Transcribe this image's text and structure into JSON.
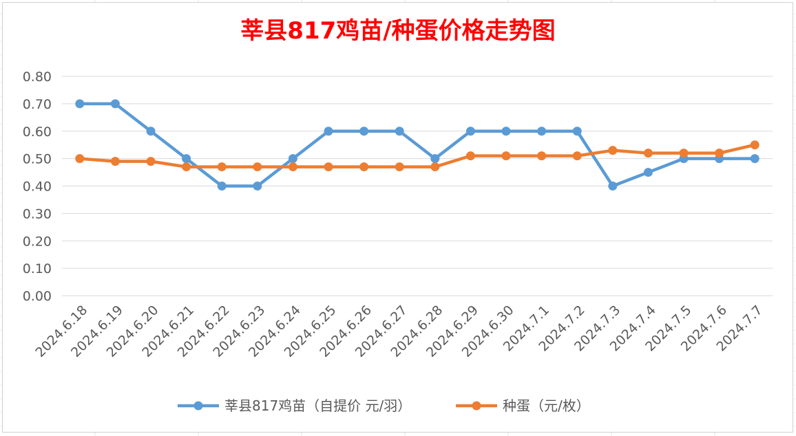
{
  "chart_data": {
    "type": "line",
    "title": "莘县817鸡苗/种蛋价格走势图",
    "xlabel": "",
    "ylabel": "",
    "ylim": [
      0,
      0.8
    ],
    "yticks": [
      "0.00",
      "0.10",
      "0.20",
      "0.30",
      "0.40",
      "0.50",
      "0.60",
      "0.70",
      "0.80"
    ],
    "grid": true,
    "legend": "bottom",
    "categories": [
      "2024.6.18",
      "2024.6.19",
      "2024.6.20",
      "2024.6.21",
      "2024.6.22",
      "2024.6.23",
      "2024.6.24",
      "2024.6.25",
      "2024.6.26",
      "2024.6.27",
      "2024.6.28",
      "2024.6.29",
      "2024.6.30",
      "2024.7.1",
      "2024.7.2",
      "2024.7.3",
      "2024.7.4",
      "2024.7.5",
      "2024.7.6",
      "2024.7.7"
    ],
    "series": [
      {
        "name": "莘县817鸡苗（自提价 元/羽）",
        "color": "#5b9bd5",
        "values": [
          0.7,
          0.7,
          0.6,
          0.5,
          0.4,
          0.4,
          0.5,
          0.6,
          0.6,
          0.6,
          0.5,
          0.6,
          0.6,
          0.6,
          0.6,
          0.4,
          0.45,
          0.5,
          0.5,
          0.5
        ]
      },
      {
        "name": "种蛋（元/枚）",
        "color": "#ed7d31",
        "values": [
          0.5,
          0.49,
          0.49,
          0.47,
          0.47,
          0.47,
          0.47,
          0.47,
          0.47,
          0.47,
          0.47,
          0.51,
          0.51,
          0.51,
          0.51,
          0.53,
          0.52,
          0.52,
          0.52,
          0.55
        ]
      }
    ],
    "title_color": "#ff0000"
  }
}
